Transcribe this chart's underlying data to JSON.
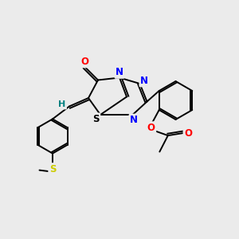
{
  "background_color": "#ebebeb",
  "bond_color": "#000000",
  "atom_colors": {
    "O": "#ff0000",
    "N": "#0000ff",
    "S_yellow": "#cccc00",
    "S_black": "#000000",
    "H": "#008080"
  },
  "figsize": [
    3.0,
    3.0
  ],
  "dpi": 100
}
